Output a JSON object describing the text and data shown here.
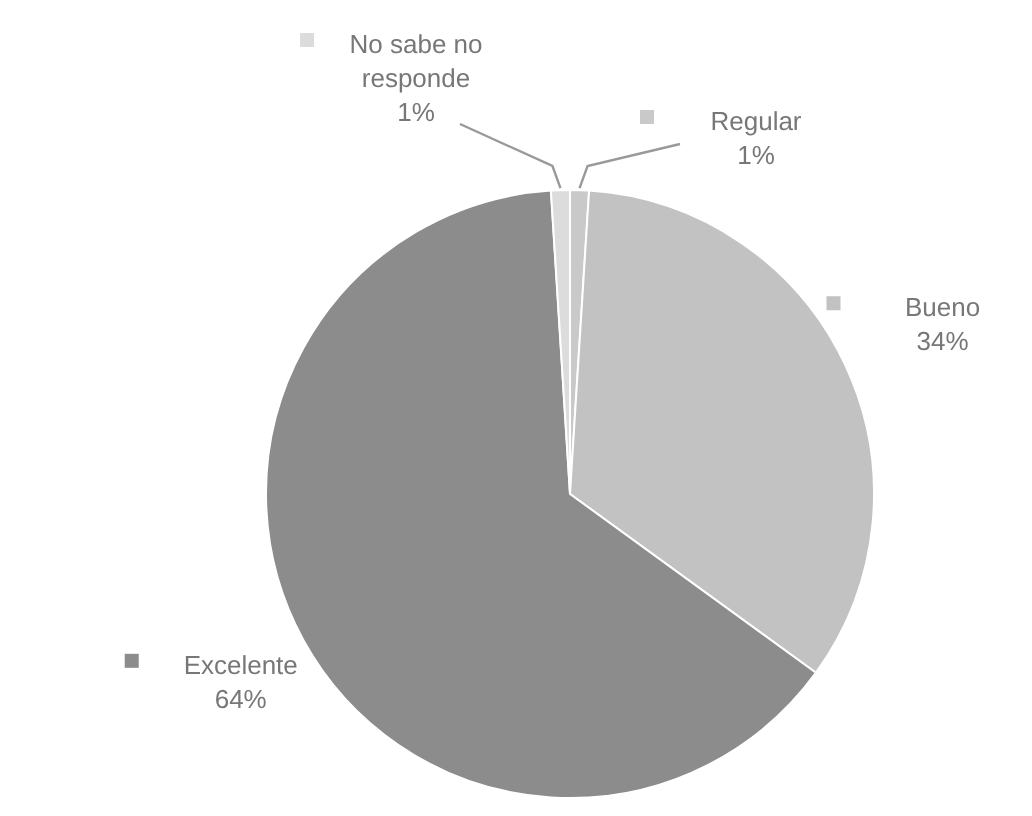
{
  "chart_data": {
    "type": "pie",
    "categories": [
      "Regular",
      "Bueno",
      "Excelente",
      "No sabe no responde"
    ],
    "values": [
      1,
      34,
      64,
      1
    ],
    "value_labels": [
      "1%",
      "34%",
      "64%",
      "1%"
    ],
    "colors": [
      "#c9c9c9",
      "#c2c2c2",
      "#8c8c8c",
      "#dcdcdc"
    ],
    "legend": "top left"
  }
}
